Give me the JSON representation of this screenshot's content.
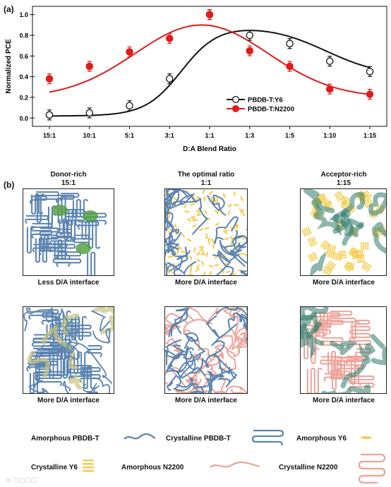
{
  "panel_a_label": "(a)",
  "panel_b_label": "(b)",
  "chart_data": {
    "type": "line",
    "title": "",
    "xlabel": "D:A Blend Ratio",
    "ylabel": "Normalized PCE",
    "categories": [
      "15:1",
      "10:1",
      "5:1",
      "3:1",
      "1:1",
      "1:3",
      "1:5",
      "1:10",
      "1:15"
    ],
    "ylim": [
      -0.08,
      1.08
    ],
    "yticks": [
      "0.0",
      "0.2",
      "0.4",
      "0.6",
      "0.8",
      "1.0"
    ],
    "grid": false,
    "legend_position": "lower-right",
    "series": [
      {
        "name": "PBDB-T:Y6",
        "color": "#111111",
        "marker": "open-circle",
        "values": [
          0.03,
          0.05,
          0.12,
          0.38,
          1.0,
          0.8,
          0.72,
          0.55,
          0.45
        ]
      },
      {
        "name": "PBDB-T:N2200",
        "color": "#e01b1b",
        "marker": "filled-circle",
        "values": [
          0.38,
          0.5,
          0.64,
          0.77,
          1.0,
          0.65,
          0.5,
          0.28,
          0.23
        ]
      }
    ]
  },
  "morphology": {
    "columns": [
      {
        "title": "Donor-rich",
        "ratio": "15:1"
      },
      {
        "title": "The optimal ratio",
        "ratio": "1:1"
      },
      {
        "title": "Acceptor-rich",
        "ratio": "1:15"
      }
    ],
    "row1_captions": [
      "Less D/A interface",
      "More D/A interface",
      "More D/A interface"
    ],
    "row2_captions": [
      "More D/A interface",
      "More D/A interface",
      "More D/A interface"
    ]
  },
  "legend": {
    "amorphous_pbdbt": "Amorphous PBDB-T",
    "crystalline_pbdbt": "Crystalline PBDB-T",
    "amorphous_y6": "Amorphous Y6",
    "crystalline_y6": "Crystalline Y6",
    "amorphous_n2200": "Amorphous N2200",
    "crystalline_n2200": "Crystalline N2200"
  },
  "colors": {
    "pbdbt_blue": "#5b84b1",
    "y6_yellow": "#f4cf55",
    "n2200_pink": "#eea49a",
    "crystal_green": "#4f9c3a",
    "teal_glow": "#2f7a6a"
  }
}
